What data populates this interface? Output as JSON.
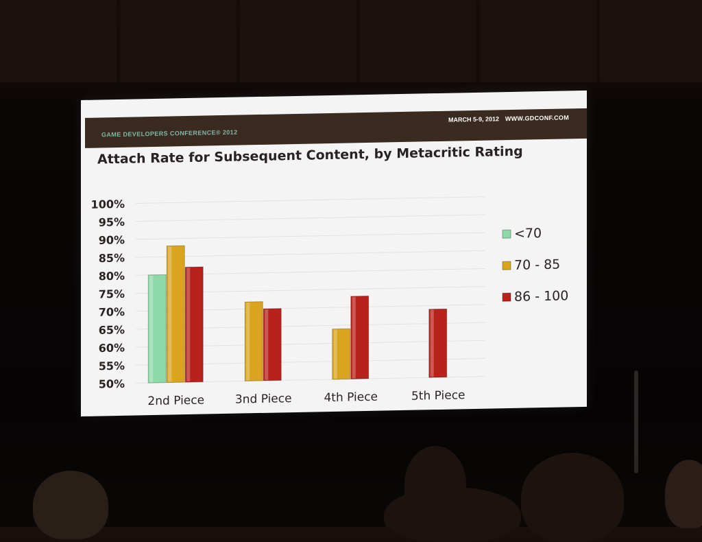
{
  "banner": {
    "conference": "GAME DEVELOPERS CONFERENCE® 2012",
    "dates": "MARCH 5-9, 2012",
    "website": "WWW.GDCONF.COM"
  },
  "chart_data": {
    "type": "bar",
    "title": "Attach Rate for Subsequent Content, by Metacritic Rating",
    "xlabel": "",
    "ylabel": "",
    "categories": [
      "2nd Piece",
      "3nd Piece",
      "4th Piece",
      "5th Piece"
    ],
    "series": [
      {
        "name": "<70",
        "color": "#8fd8a8",
        "values": [
          80,
          null,
          null,
          null
        ]
      },
      {
        "name": "70 - 85",
        "color": "#d9a420",
        "values": [
          88,
          72,
          64,
          null
        ]
      },
      {
        "name": "86 - 100",
        "color": "#b8221c",
        "values": [
          82,
          70,
          73,
          69
        ]
      }
    ],
    "ylim": [
      50,
      100
    ],
    "yticks": [
      "50%",
      "55%",
      "60%",
      "65%",
      "70%",
      "75%",
      "80%",
      "85%",
      "90%",
      "95%",
      "100%"
    ],
    "grid": true,
    "legend_position": "right"
  }
}
